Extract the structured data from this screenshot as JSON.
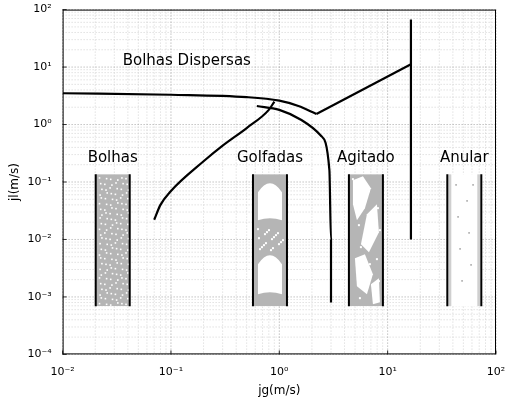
{
  "chart_data": {
    "type": "line",
    "log": true,
    "grid": true,
    "xlabel": "jg(m/s)",
    "ylabel": "jl(m/s)",
    "xlim": [
      0.01,
      100
    ],
    "ylim": [
      0.0001,
      100
    ],
    "xticks": [
      {
        "value": 0.01,
        "label": "10⁻²"
      },
      {
        "value": 0.1,
        "label": "10⁻¹"
      },
      {
        "value": 1,
        "label": "10⁰"
      },
      {
        "value": 10,
        "label": "10¹"
      },
      {
        "value": 100,
        "label": "10²"
      }
    ],
    "yticks": [
      {
        "value": 0.0001,
        "label": "10⁻⁴"
      },
      {
        "value": 0.001,
        "label": "10⁻³"
      },
      {
        "value": 0.01,
        "label": "10⁻²"
      },
      {
        "value": 0.1,
        "label": "10⁻¹"
      },
      {
        "value": 1,
        "label": "10⁰"
      },
      {
        "value": 10,
        "label": "10¹"
      },
      {
        "value": 100,
        "label": "10²"
      }
    ],
    "series": [
      {
        "color": "#000000",
        "line_style": "solid",
        "x": [
          0.01,
          0.1,
          0.5,
          1,
          1.5,
          2.2
        ],
        "values": [
          3.5,
          3.3,
          3.0,
          2.6,
          2.1,
          1.53
        ]
      },
      {
        "color": "#000000",
        "line_style": "solid",
        "x": [
          2.2,
          16.4
        ],
        "values": [
          1.53,
          11.2
        ]
      },
      {
        "color": "#000000",
        "line_style": "solid",
        "x": [
          16.4,
          16.4
        ],
        "values": [
          0.01,
          67
        ]
      },
      {
        "color": "#000000",
        "line_style": "solid",
        "x": [
          0.07,
          0.08,
          0.1,
          0.2,
          0.3,
          0.5,
          0.8,
          0.9
        ],
        "values": [
          0.022,
          0.04,
          0.07,
          0.23,
          0.43,
          0.87,
          1.8,
          2.5
        ]
      },
      {
        "color": "#000000",
        "line_style": "solid",
        "x": [
          0.62,
          1,
          1.6,
          2.4,
          2.9,
          3.0,
          3.0
        ],
        "values": [
          2.1,
          1.8,
          1.2,
          0.65,
          0.16,
          0.01,
          0.0008
        ]
      }
    ],
    "annotations": [
      {
        "text": "Bolhas Dispersas",
        "x": 0.14,
        "y": 12.6
      },
      {
        "text": "Bolhas",
        "x": 0.029,
        "y": 0.26
      },
      {
        "text": "Golfadas",
        "x": 0.82,
        "y": 0.26
      },
      {
        "text": "Agitado",
        "x": 6.3,
        "y": 0.26
      },
      {
        "text": "Anular",
        "x": 51,
        "y": 0.26
      }
    ]
  }
}
